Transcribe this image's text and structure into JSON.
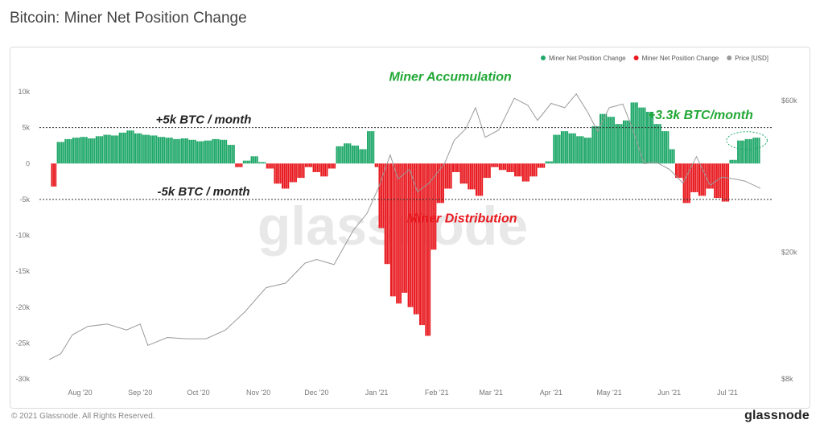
{
  "page": {
    "title": "Bitcoin: Miner Net Position Change",
    "copyright": "© 2021 Glassnode. All Rights Reserved.",
    "brand": "glassnode",
    "watermark": "glassnode"
  },
  "colors": {
    "positive": "#20a86a",
    "negative": "#e8191f",
    "price": "#9a9a9a",
    "accumulation_text": "#22a836",
    "distribution_text": "#e8191f",
    "reference_line": "#333333"
  },
  "chart_data": {
    "type": "bar",
    "title": "Bitcoin: Miner Net Position Change",
    "legend": {
      "placement": "top-right",
      "entries": [
        {
          "label": "Miner Net Position Change",
          "color": "#20a86a"
        },
        {
          "label": "Miner Net Position Change",
          "color": "#e8191f"
        },
        {
          "label": "Price [USD]",
          "color": "#9a9a9a"
        }
      ]
    },
    "x_range": [
      "2020-07-16",
      "2021-07-18"
    ],
    "x_ticks": [
      {
        "date": "2020-08-01",
        "label": "Aug '20"
      },
      {
        "date": "2020-09-01",
        "label": "Sep '20"
      },
      {
        "date": "2020-10-01",
        "label": "Oct '20"
      },
      {
        "date": "2020-11-01",
        "label": "Nov '20"
      },
      {
        "date": "2020-12-01",
        "label": "Dec '20"
      },
      {
        "date": "2021-01-01",
        "label": "Jan '21"
      },
      {
        "date": "2021-02-01",
        "label": "Feb '21"
      },
      {
        "date": "2021-03-01",
        "label": "Mar '21"
      },
      {
        "date": "2021-04-01",
        "label": "Apr '21"
      },
      {
        "date": "2021-05-01",
        "label": "May '21"
      },
      {
        "date": "2021-06-01",
        "label": "Jun '21"
      },
      {
        "date": "2021-07-01",
        "label": "Jul '21"
      }
    ],
    "y_left": {
      "range": [
        -30000,
        10000
      ],
      "ticks": [
        {
          "value": 10000,
          "label": "10k"
        },
        {
          "value": 5000,
          "label": "5k"
        },
        {
          "value": 0,
          "label": "0"
        },
        {
          "value": -5000,
          "label": "-5k"
        },
        {
          "value": -10000,
          "label": "-10k"
        },
        {
          "value": -15000,
          "label": "-15k"
        },
        {
          "value": -20000,
          "label": "-20k"
        },
        {
          "value": -25000,
          "label": "-25k"
        },
        {
          "value": -30000,
          "label": "-30k"
        }
      ]
    },
    "y_right": {
      "scale": "log",
      "range": [
        8000,
        64000
      ],
      "ticks": [
        {
          "value": 60000,
          "label": "$60k"
        },
        {
          "value": 20000,
          "label": "$20k"
        },
        {
          "value": 8000,
          "label": "$8k"
        }
      ]
    },
    "series": [
      {
        "name": "Miner Net Position Change",
        "kind": "bar",
        "points": [
          [
            "2020-07-17",
            -3200
          ],
          [
            "2020-07-20",
            3000
          ],
          [
            "2020-07-24",
            3400
          ],
          [
            "2020-07-28",
            3600
          ],
          [
            "2020-08-01",
            3700
          ],
          [
            "2020-08-05",
            3500
          ],
          [
            "2020-08-09",
            3800
          ],
          [
            "2020-08-13",
            4000
          ],
          [
            "2020-08-17",
            3900
          ],
          [
            "2020-08-21",
            4300
          ],
          [
            "2020-08-25",
            4600
          ],
          [
            "2020-08-29",
            4200
          ],
          [
            "2020-09-02",
            4000
          ],
          [
            "2020-09-06",
            3900
          ],
          [
            "2020-09-10",
            3700
          ],
          [
            "2020-09-14",
            3600
          ],
          [
            "2020-09-18",
            3400
          ],
          [
            "2020-09-22",
            3500
          ],
          [
            "2020-09-26",
            3300
          ],
          [
            "2020-09-30",
            3100
          ],
          [
            "2020-10-04",
            3200
          ],
          [
            "2020-10-08",
            3400
          ],
          [
            "2020-10-12",
            3300
          ],
          [
            "2020-10-16",
            2600
          ],
          [
            "2020-10-20",
            -500
          ],
          [
            "2020-10-24",
            400
          ],
          [
            "2020-10-28",
            1000
          ],
          [
            "2020-11-01",
            200
          ],
          [
            "2020-11-05",
            -700
          ],
          [
            "2020-11-09",
            -2800
          ],
          [
            "2020-11-13",
            -3500
          ],
          [
            "2020-11-17",
            -2600
          ],
          [
            "2020-11-21",
            -2000
          ],
          [
            "2020-11-25",
            -500
          ],
          [
            "2020-11-29",
            -1200
          ],
          [
            "2020-12-03",
            -1800
          ],
          [
            "2020-12-07",
            -700
          ],
          [
            "2020-12-11",
            2400
          ],
          [
            "2020-12-15",
            2800
          ],
          [
            "2020-12-19",
            2500
          ],
          [
            "2020-12-23",
            2000
          ],
          [
            "2020-12-27",
            4500
          ],
          [
            "2020-12-31",
            -500
          ],
          [
            "2021-01-02",
            -9000
          ],
          [
            "2021-01-05",
            -14000
          ],
          [
            "2021-01-08",
            -18500
          ],
          [
            "2021-01-11",
            -19500
          ],
          [
            "2021-01-14",
            -18000
          ],
          [
            "2021-01-17",
            -20000
          ],
          [
            "2021-01-20",
            -21000
          ],
          [
            "2021-01-23",
            -22500
          ],
          [
            "2021-01-26",
            -24000
          ],
          [
            "2021-01-29",
            -12000
          ],
          [
            "2021-02-01",
            -5500
          ],
          [
            "2021-02-05",
            -3500
          ],
          [
            "2021-02-09",
            -1200
          ],
          [
            "2021-02-13",
            -2800
          ],
          [
            "2021-02-17",
            -3600
          ],
          [
            "2021-02-21",
            -4500
          ],
          [
            "2021-02-25",
            -2000
          ],
          [
            "2021-03-01",
            -500
          ],
          [
            "2021-03-05",
            -900
          ],
          [
            "2021-03-09",
            -1200
          ],
          [
            "2021-03-13",
            -1800
          ],
          [
            "2021-03-17",
            -2500
          ],
          [
            "2021-03-21",
            -1800
          ],
          [
            "2021-03-25",
            -600
          ],
          [
            "2021-03-29",
            300
          ],
          [
            "2021-04-02",
            4000
          ],
          [
            "2021-04-06",
            4500
          ],
          [
            "2021-04-10",
            4200
          ],
          [
            "2021-04-14",
            3800
          ],
          [
            "2021-04-18",
            3600
          ],
          [
            "2021-04-22",
            5200
          ],
          [
            "2021-04-26",
            6900
          ],
          [
            "2021-04-30",
            6500
          ],
          [
            "2021-05-04",
            5500
          ],
          [
            "2021-05-08",
            6000
          ],
          [
            "2021-05-12",
            8500
          ],
          [
            "2021-05-16",
            7800
          ],
          [
            "2021-05-20",
            7200
          ],
          [
            "2021-05-24",
            5500
          ],
          [
            "2021-05-28",
            4500
          ],
          [
            "2021-06-01",
            2000
          ],
          [
            "2021-06-04",
            -2000
          ],
          [
            "2021-06-08",
            -5500
          ],
          [
            "2021-06-12",
            -4000
          ],
          [
            "2021-06-16",
            -4500
          ],
          [
            "2021-06-20",
            -3500
          ],
          [
            "2021-06-24",
            -4800
          ],
          [
            "2021-06-28",
            -5300
          ],
          [
            "2021-07-02",
            500
          ],
          [
            "2021-07-06",
            3200
          ],
          [
            "2021-07-10",
            3400
          ],
          [
            "2021-07-14",
            3600
          ]
        ]
      },
      {
        "name": "Price [USD]",
        "kind": "line",
        "points": [
          [
            "2020-07-16",
            9200
          ],
          [
            "2020-07-22",
            9600
          ],
          [
            "2020-07-28",
            11000
          ],
          [
            "2020-08-05",
            11700
          ],
          [
            "2020-08-15",
            11900
          ],
          [
            "2020-08-25",
            11400
          ],
          [
            "2020-09-01",
            11900
          ],
          [
            "2020-09-05",
            10200
          ],
          [
            "2020-09-15",
            10800
          ],
          [
            "2020-09-25",
            10700
          ],
          [
            "2020-10-05",
            10700
          ],
          [
            "2020-10-15",
            11400
          ],
          [
            "2020-10-25",
            13000
          ],
          [
            "2020-11-05",
            15500
          ],
          [
            "2020-11-15",
            16000
          ],
          [
            "2020-11-25",
            18500
          ],
          [
            "2020-12-01",
            19000
          ],
          [
            "2020-12-10",
            18300
          ],
          [
            "2020-12-20",
            23500
          ],
          [
            "2020-12-27",
            26500
          ],
          [
            "2021-01-02",
            32000
          ],
          [
            "2021-01-08",
            40500
          ],
          [
            "2021-01-12",
            34000
          ],
          [
            "2021-01-18",
            36500
          ],
          [
            "2021-01-22",
            31000
          ],
          [
            "2021-01-28",
            33000
          ],
          [
            "2021-02-05",
            38000
          ],
          [
            "2021-02-10",
            45000
          ],
          [
            "2021-02-16",
            49000
          ],
          [
            "2021-02-21",
            57000
          ],
          [
            "2021-02-26",
            46000
          ],
          [
            "2021-03-05",
            48500
          ],
          [
            "2021-03-13",
            61000
          ],
          [
            "2021-03-20",
            58000
          ],
          [
            "2021-03-25",
            52000
          ],
          [
            "2021-04-01",
            58800
          ],
          [
            "2021-04-08",
            57000
          ],
          [
            "2021-04-14",
            63000
          ],
          [
            "2021-04-20",
            55000
          ],
          [
            "2021-04-25",
            48000
          ],
          [
            "2021-05-01",
            57000
          ],
          [
            "2021-05-08",
            58500
          ],
          [
            "2021-05-13",
            49000
          ],
          [
            "2021-05-19",
            38000
          ],
          [
            "2021-05-25",
            38500
          ],
          [
            "2021-06-01",
            36500
          ],
          [
            "2021-06-08",
            33000
          ],
          [
            "2021-06-15",
            40000
          ],
          [
            "2021-06-22",
            32500
          ],
          [
            "2021-06-28",
            34500
          ],
          [
            "2021-07-05",
            34000
          ],
          [
            "2021-07-10",
            33500
          ],
          [
            "2021-07-18",
            31800
          ]
        ]
      }
    ],
    "reference_lines": [
      {
        "value": 5000,
        "label": "+5k BTC / month"
      },
      {
        "value": -5000,
        "label": "-5k BTC / month"
      }
    ],
    "annotations": [
      {
        "text": "Miner Accumulation",
        "color": "#22a836",
        "date": "2021-02-08",
        "value": 11500
      },
      {
        "text": "Miner Distribution",
        "color": "#e8191f",
        "date": "2021-02-14",
        "value": -8200
      },
      {
        "text": "+3.3k BTC/month",
        "color": "#22a836",
        "date": "2021-06-17",
        "value": 6200
      }
    ],
    "highlight": {
      "start": "2021-07-03",
      "end": "2021-07-19",
      "value": 3200
    }
  }
}
